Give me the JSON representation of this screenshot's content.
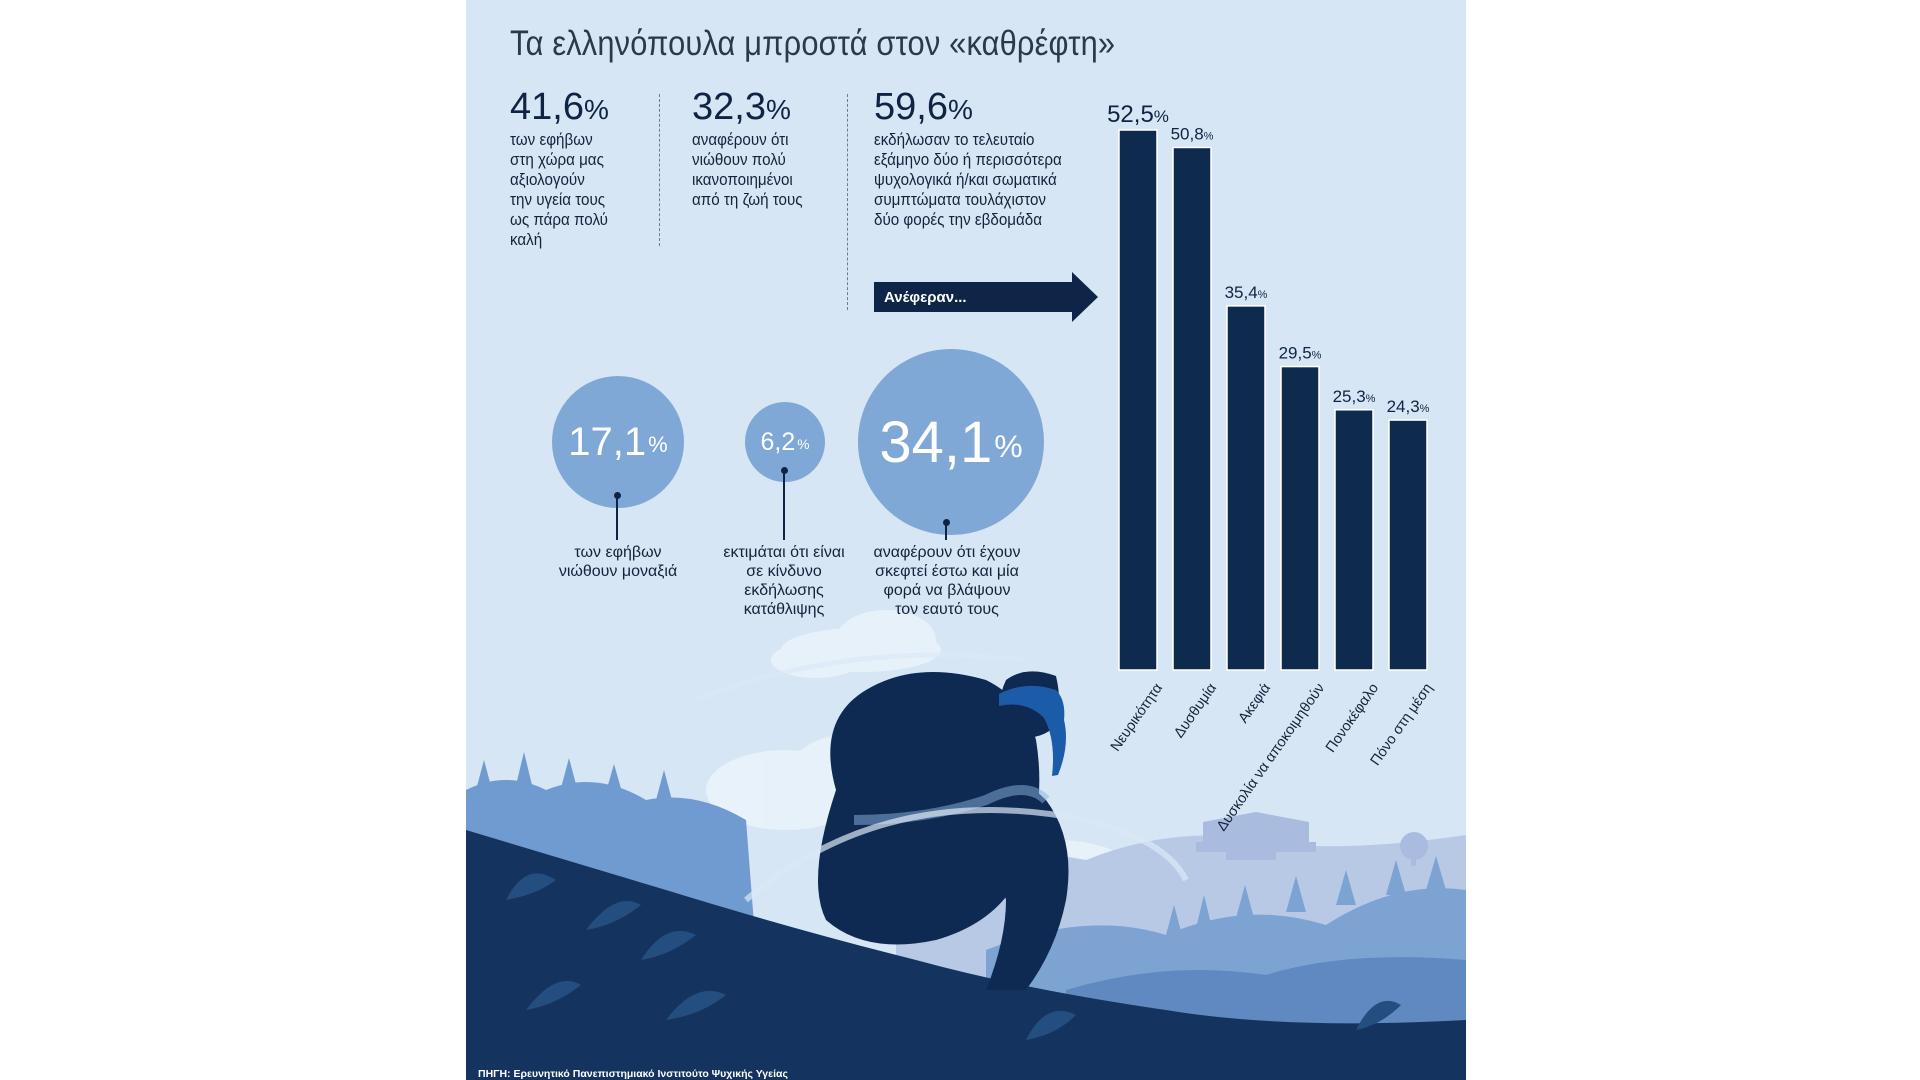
{
  "title": "Τα ελληνόπουλα μπροστά στον «καθρέφτη»",
  "stats": [
    {
      "value": "41,6",
      "unit": "%",
      "lines": [
        "των εφήβων",
        "στη χώρα μας",
        "αξιολογούν",
        "την υγεία τους",
        "ως πάρα πολύ",
        "καλή"
      ]
    },
    {
      "value": "32,3",
      "unit": "%",
      "lines": [
        "αναφέρουν ότι",
        "νιώθουν πολύ",
        "ικανοποιημένοι",
        "από τη ζωή τους"
      ]
    },
    {
      "value": "59,6",
      "unit": "%",
      "lines": [
        "εκδήλωσαν το τελευταίο",
        "εξάμηνο δύο ή περισσότερα",
        "ψυχολογικά ή/και σωματικά",
        "συμπτώματα τουλάχιστον",
        "δύο φορές την εβδομάδα"
      ]
    }
  ],
  "arrow_label": "Ανέφεραν...",
  "bubbles": [
    {
      "value": "17,1",
      "unit": "%",
      "lines": [
        "των εφήβων",
        "νιώθουν μοναξιά"
      ]
    },
    {
      "value": "6,2",
      "unit": "%",
      "lines": [
        "εκτιμάται ότι είναι",
        "σε κίνδυνο",
        "εκδήλωσης",
        "κατάθλιψης"
      ]
    },
    {
      "value": "34,1",
      "unit": "%",
      "lines": [
        "αναφέρουν ότι έχουν",
        "σκεφτεί έστω και μία",
        "φορά να βλάψουν",
        "τον εαυτό τους"
      ]
    }
  ],
  "chart_data": {
    "type": "bar",
    "categories": [
      "Νευρικότητα",
      "Δυσθυμία",
      "Ακεφιά",
      "Δυσκολία να αποκοιμηθούν",
      "Πονοκέφαλο",
      "Πόνο στη μέση"
    ],
    "values": [
      52.5,
      50.8,
      35.4,
      29.5,
      25.3,
      24.3
    ],
    "value_labels": [
      "52,5",
      "50,8",
      "35,4",
      "29,5",
      "25,3",
      "24,3"
    ],
    "unit": "%",
    "title": "",
    "xlabel": "",
    "ylabel": "",
    "ylim": [
      0,
      52.5
    ],
    "grid": false,
    "bar_color": "#0e2a4d"
  },
  "source": "ΠΗΓΗ: Ερευνητικό Πανεπιστημιακό Ινστιτούτο Ψυχικής Υγείας",
  "colors": {
    "background": "#d6e6f4",
    "bubble": "#7fa8d6",
    "dark_navy": "#0e2547",
    "text": "#14233a"
  }
}
